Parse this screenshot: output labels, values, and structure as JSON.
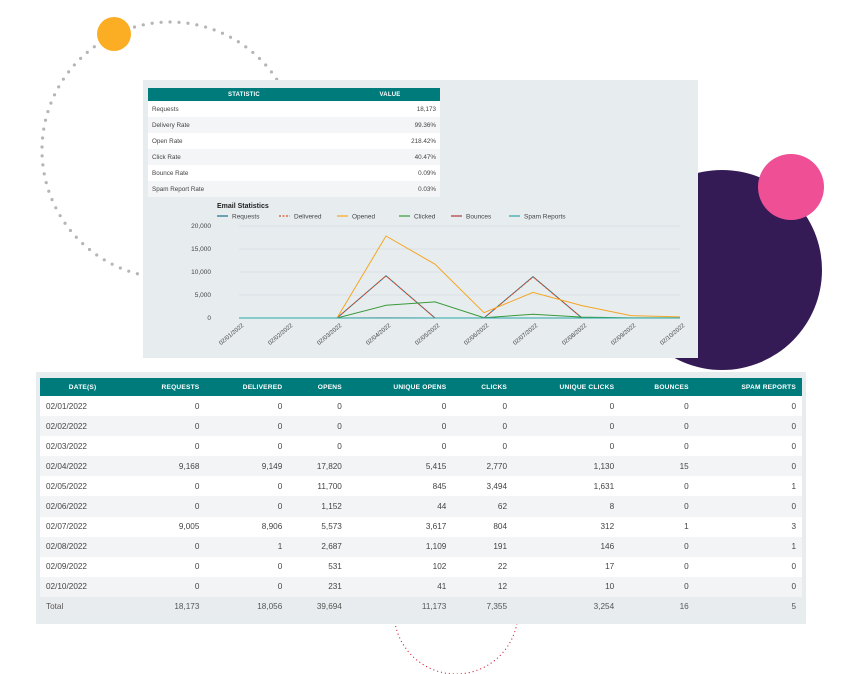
{
  "stats_table": {
    "headers": [
      "STATISTIC",
      "VALUE"
    ],
    "rows": [
      {
        "label": "Requests",
        "value": "18,173"
      },
      {
        "label": "Delivery Rate",
        "value": "99.36%"
      },
      {
        "label": "Open Rate",
        "value": "218.42%"
      },
      {
        "label": "Click Rate",
        "value": "40.47%"
      },
      {
        "label": "Bounce Rate",
        "value": "0.09%"
      },
      {
        "label": "Spam Report Rate",
        "value": "0.03%"
      }
    ]
  },
  "colors": {
    "teal_header": "#007b7b",
    "panel_bg": "#e7ecef",
    "orange_circle": "#fbae24",
    "pink_circle": "#ef4f95",
    "purple_circle": "#341b55",
    "dots_gray": "#b5b5b5",
    "dots_red": "#d9344a"
  },
  "chart_data": {
    "type": "line",
    "title": "Email Statistics",
    "legend_position": "top-left",
    "grid": true,
    "ylim": [
      0,
      20000
    ],
    "yticks": [
      "20,000",
      "15,000",
      "10,000",
      "5,000",
      "0"
    ],
    "ytick_values": [
      20000,
      15000,
      10000,
      5000,
      0
    ],
    "x": [
      "02/01/2022",
      "02/02/2022",
      "02/03/2022",
      "02/04/2022",
      "02/05/2022",
      "02/06/2022",
      "02/07/2022",
      "02/08/2022",
      "02/09/2022",
      "02/10/2022"
    ],
    "series": [
      {
        "name": "Requests",
        "color": "#1f6f8b",
        "dash": false,
        "values": [
          0,
          0,
          0,
          9168,
          0,
          0,
          9005,
          0,
          0,
          0
        ]
      },
      {
        "name": "Delivered",
        "color": "#e0532a",
        "dash": true,
        "values": [
          0,
          0,
          0,
          9149,
          0,
          0,
          8906,
          1,
          0,
          0
        ]
      },
      {
        "name": "Opened",
        "color": "#f5a623",
        "dash": false,
        "values": [
          0,
          0,
          0,
          17820,
          11700,
          1152,
          5573,
          2687,
          531,
          231
        ]
      },
      {
        "name": "Clicked",
        "color": "#3a9a3a",
        "dash": false,
        "values": [
          0,
          0,
          0,
          2770,
          3494,
          62,
          804,
          191,
          22,
          12
        ]
      },
      {
        "name": "Bounces",
        "color": "#b03a3a",
        "dash": false,
        "values": [
          0,
          0,
          0,
          15,
          0,
          0,
          1,
          0,
          0,
          0
        ]
      },
      {
        "name": "Spam Reports",
        "color": "#2aa8a8",
        "dash": false,
        "values": [
          0,
          0,
          0,
          0,
          1,
          0,
          3,
          1,
          0,
          0
        ]
      }
    ]
  },
  "data_table": {
    "headers": [
      "DATE(S)",
      "REQUESTS",
      "DELIVERED",
      "OPENS",
      "UNIQUE OPENS",
      "CLICKS",
      "UNIQUE CLICKS",
      "BOUNCES",
      "SPAM REPORTS"
    ],
    "rows": [
      [
        "02/01/2022",
        "0",
        "0",
        "0",
        "0",
        "0",
        "0",
        "0",
        "0"
      ],
      [
        "02/02/2022",
        "0",
        "0",
        "0",
        "0",
        "0",
        "0",
        "0",
        "0"
      ],
      [
        "02/03/2022",
        "0",
        "0",
        "0",
        "0",
        "0",
        "0",
        "0",
        "0"
      ],
      [
        "02/04/2022",
        "9,168",
        "9,149",
        "17,820",
        "5,415",
        "2,770",
        "1,130",
        "15",
        "0"
      ],
      [
        "02/05/2022",
        "0",
        "0",
        "11,700",
        "845",
        "3,494",
        "1,631",
        "0",
        "1"
      ],
      [
        "02/06/2022",
        "0",
        "0",
        "1,152",
        "44",
        "62",
        "8",
        "0",
        "0"
      ],
      [
        "02/07/2022",
        "9,005",
        "8,906",
        "5,573",
        "3,617",
        "804",
        "312",
        "1",
        "3"
      ],
      [
        "02/08/2022",
        "0",
        "1",
        "2,687",
        "1,109",
        "191",
        "146",
        "0",
        "1"
      ],
      [
        "02/09/2022",
        "0",
        "0",
        "531",
        "102",
        "22",
        "17",
        "0",
        "0"
      ],
      [
        "02/10/2022",
        "0",
        "0",
        "231",
        "41",
        "12",
        "10",
        "0",
        "0"
      ]
    ],
    "total": [
      "Total",
      "18,173",
      "18,056",
      "39,694",
      "11,173",
      "7,355",
      "3,254",
      "16",
      "5"
    ]
  }
}
